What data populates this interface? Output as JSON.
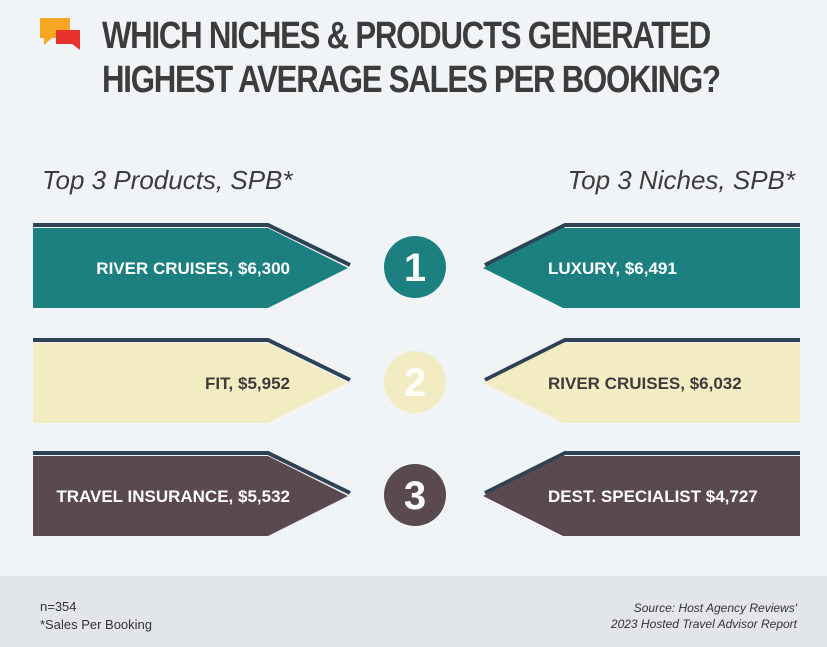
{
  "title_line1": "WHICH NICHES & PRODUCTS GENERATED",
  "title_line2": "HIGHEST AVERAGE SALES PER BOOKING?",
  "left_heading": "Top 3 Products, SPB*",
  "right_heading": "Top 3 Niches, SPB*",
  "footer": {
    "n": "n=354",
    "footnote": "*Sales Per Booking",
    "source_line1": "Source: Host Agency Reviews'",
    "source_line2": "2023 Hosted Travel Advisor Report"
  },
  "colors": {
    "rank1": "#1d8080",
    "rank2": "#f3ecc3",
    "rank3": "#5b4950",
    "edge": "#2e4256",
    "text_dark": "#3d3b3c",
    "icon_orange": "#f5a623",
    "icon_red": "#e8322c"
  },
  "chart_data": {
    "type": "table",
    "title": "WHICH NICHES & PRODUCTS GENERATED HIGHEST AVERAGE SALES PER BOOKING?",
    "ranks": [
      "1",
      "2",
      "3"
    ],
    "products": [
      {
        "rank": 1,
        "label": "RIVER CRUISES, $6,300",
        "name": "River Cruises",
        "value": 6300
      },
      {
        "rank": 2,
        "label": "FIT, $5,952",
        "name": "FIT",
        "value": 5952
      },
      {
        "rank": 3,
        "label": "TRAVEL INSURANCE, $5,532",
        "name": "Travel Insurance",
        "value": 5532
      }
    ],
    "niches": [
      {
        "rank": 1,
        "label": "LUXURY, $6,491",
        "name": "Luxury",
        "value": 6491
      },
      {
        "rank": 2,
        "label": "RIVER CRUISES, $6,032",
        "name": "River Cruises",
        "value": 6032
      },
      {
        "rank": 3,
        "label": "DEST. SPECIALIST $4,727",
        "name": "Dest. Specialist",
        "value": 4727
      }
    ]
  }
}
